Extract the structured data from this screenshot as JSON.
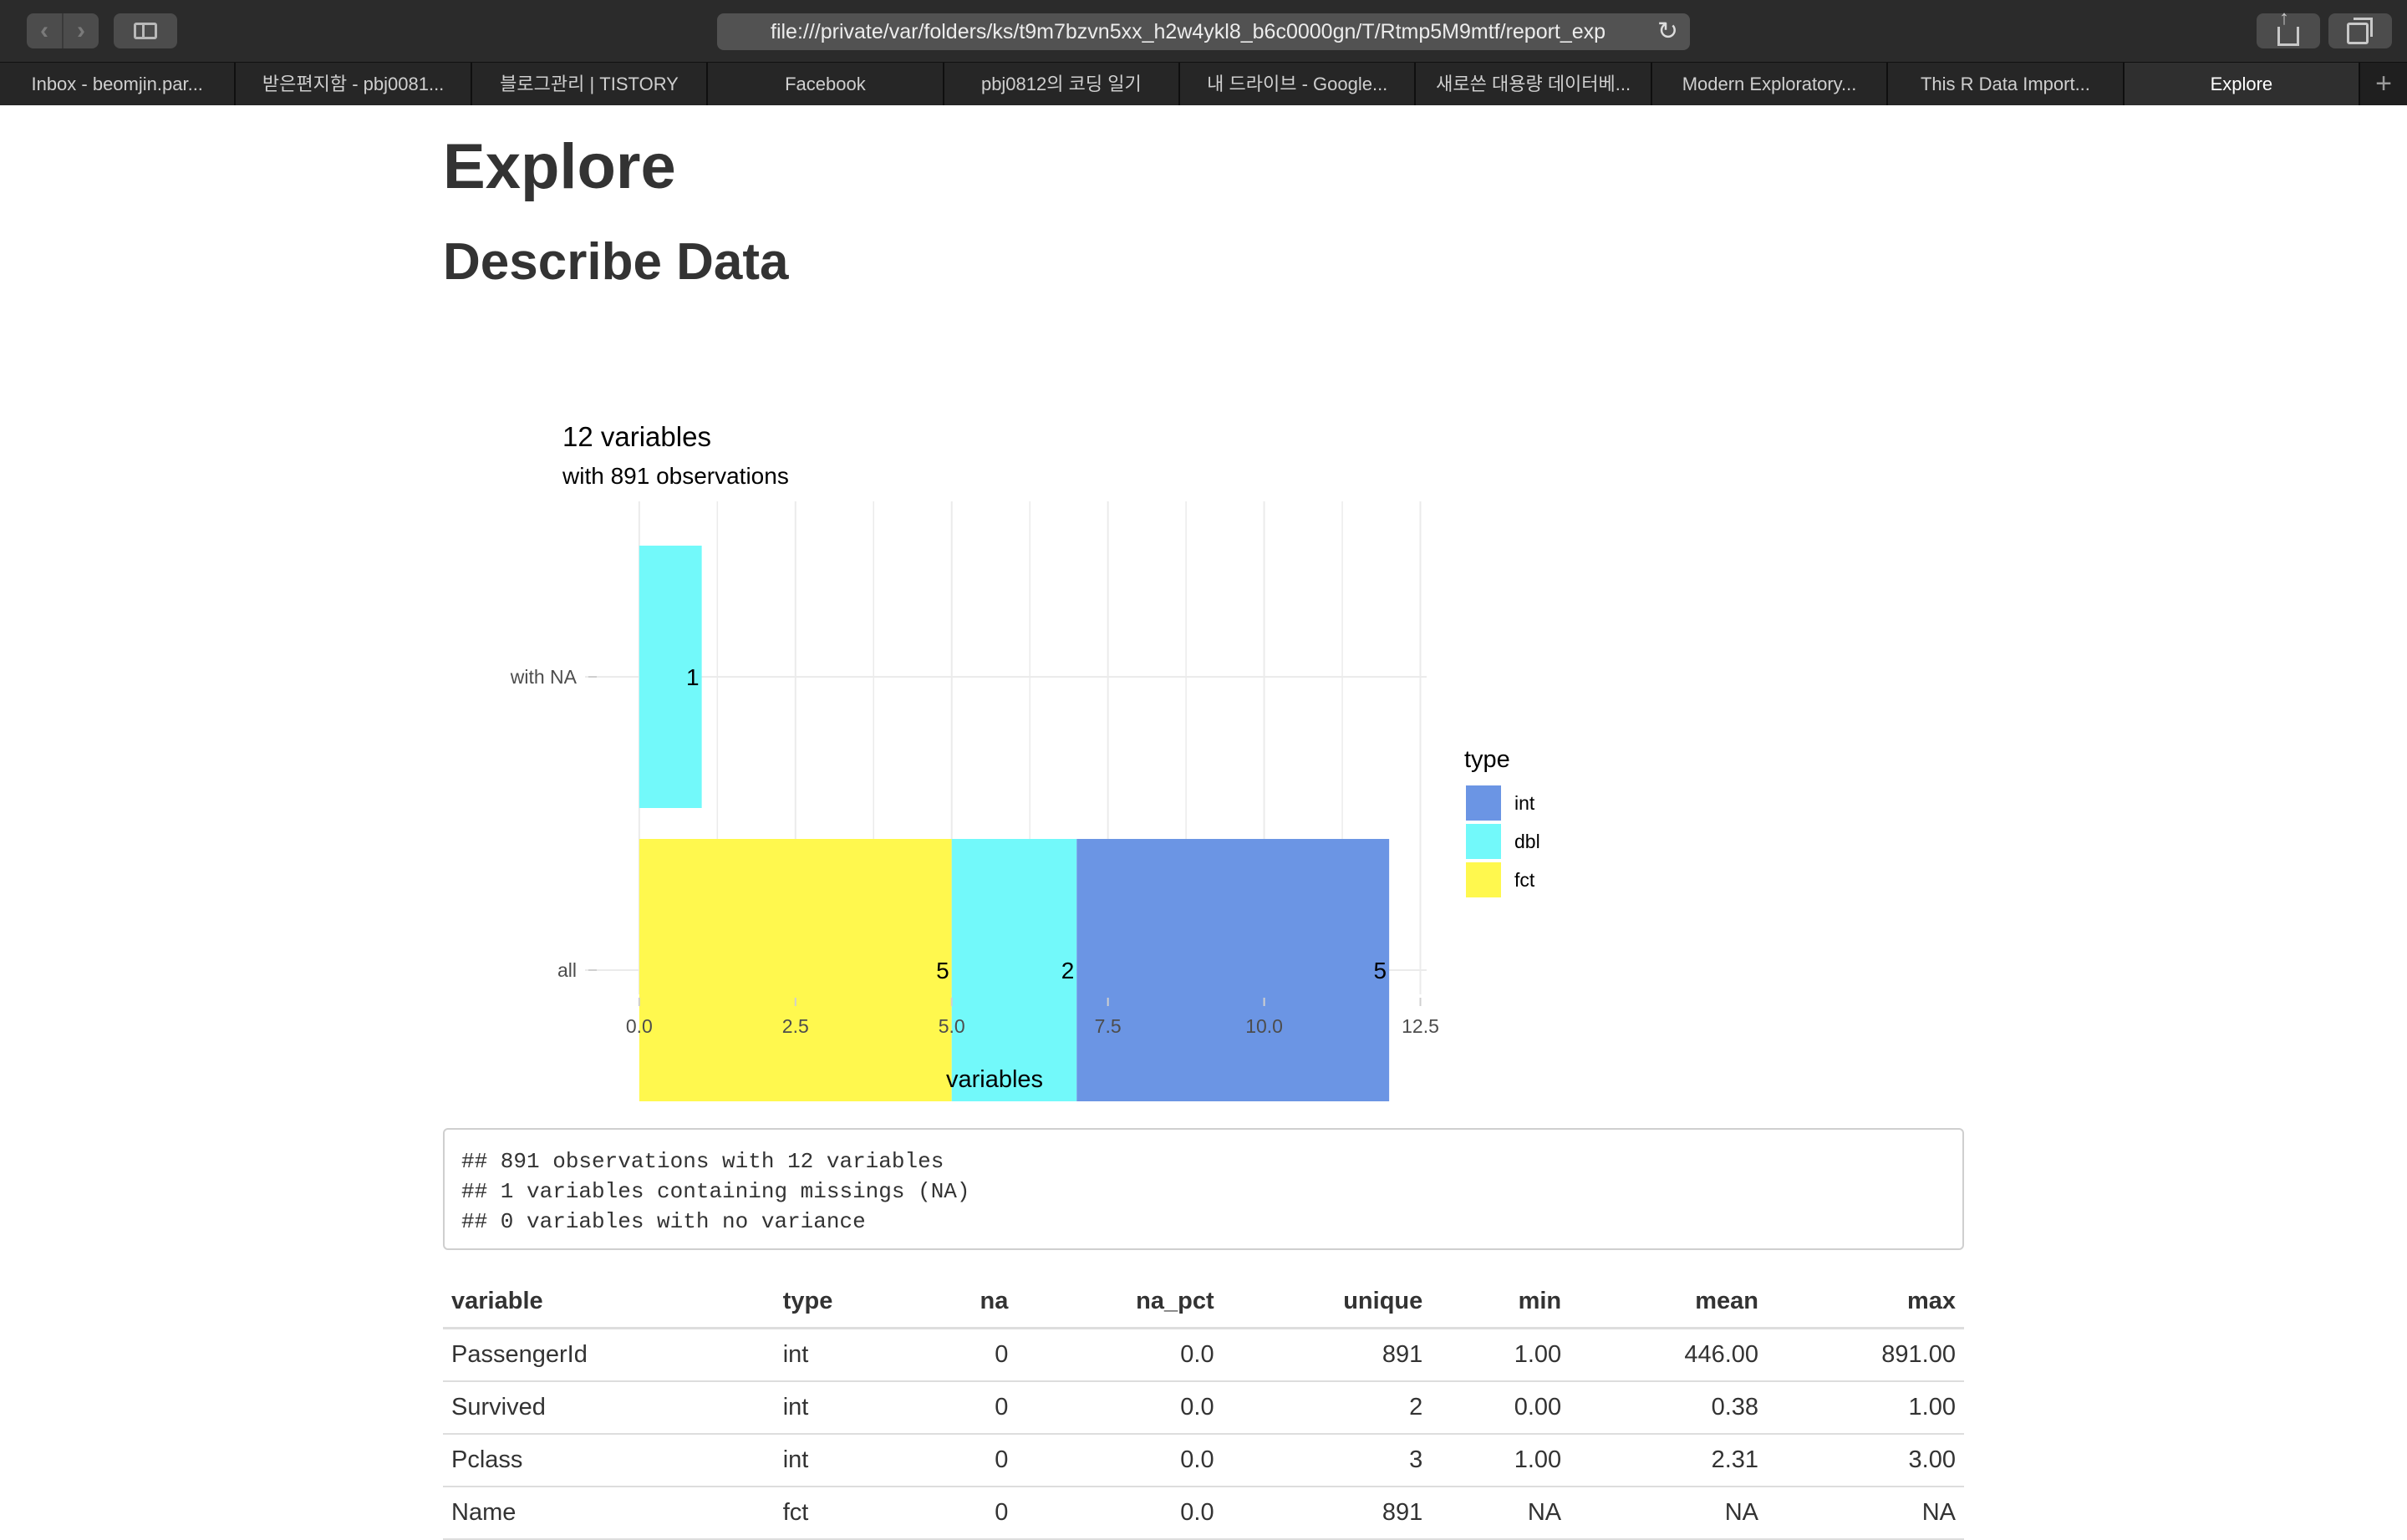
{
  "browser": {
    "url": "file:///private/var/folders/ks/t9m7bzvn5xx_h2w4ykl8_b6c0000gn/T/Rtmp5M9mtf/report_exp",
    "tabs": [
      {
        "label": "Inbox - beomjin.par..."
      },
      {
        "label": "받은편지함 - pbj0081..."
      },
      {
        "label": "블로그관리 | TISTORY"
      },
      {
        "label": "Facebook"
      },
      {
        "label": "pbj0812의 코딩 일기"
      },
      {
        "label": "내 드라이브 - Google..."
      },
      {
        "label": "새로쓴 대용량 데이터베..."
      },
      {
        "label": "Modern Exploratory..."
      },
      {
        "label": "This R Data Import..."
      },
      {
        "label": "Explore"
      }
    ],
    "active_tab_index": 9,
    "new_tab_glyph": "+"
  },
  "page": {
    "title": "Explore",
    "section": "Describe Data"
  },
  "chart_data": {
    "type": "bar",
    "orientation": "horizontal",
    "stacked": true,
    "title": "12 variables",
    "subtitle": "with 891 observations",
    "xlabel": "variables",
    "ylabel": "",
    "categories": [
      "with NA",
      "all"
    ],
    "xlim": [
      0,
      12.5
    ],
    "xticks": [
      "0.0",
      "2.5",
      "5.0",
      "7.5",
      "10.0",
      "12.5"
    ],
    "series": [
      {
        "name": "fct",
        "color": "#FFF84E",
        "values": [
          0,
          5
        ]
      },
      {
        "name": "dbl",
        "color": "#72F9FA",
        "values": [
          1,
          2
        ]
      },
      {
        "name": "int",
        "color": "#6B95E4",
        "values": [
          0,
          5
        ]
      }
    ],
    "legend": {
      "title": "type",
      "position": "right",
      "order": [
        "int",
        "dbl",
        "fct"
      ]
    },
    "grid": true
  },
  "summary_lines": [
    "## 891 observations with 12 variables",
    "## 1 variables containing missings (NA)",
    "## 0 variables with no variance"
  ],
  "table": {
    "columns": [
      {
        "label": "variable",
        "align": "l"
      },
      {
        "label": "type",
        "align": "l"
      },
      {
        "label": "na",
        "align": "r"
      },
      {
        "label": "na_pct",
        "align": "r"
      },
      {
        "label": "unique",
        "align": "r"
      },
      {
        "label": "min",
        "align": "r"
      },
      {
        "label": "mean",
        "align": "r"
      },
      {
        "label": "max",
        "align": "r"
      }
    ],
    "rows": [
      [
        "PassengerId",
        "int",
        "0",
        "0.0",
        "891",
        "1.00",
        "446.00",
        "891.00"
      ],
      [
        "Survived",
        "int",
        "0",
        "0.0",
        "2",
        "0.00",
        "0.38",
        "1.00"
      ],
      [
        "Pclass",
        "int",
        "0",
        "0.0",
        "3",
        "1.00",
        "2.31",
        "3.00"
      ],
      [
        "Name",
        "fct",
        "0",
        "0.0",
        "891",
        "NA",
        "NA",
        "NA"
      ]
    ]
  }
}
